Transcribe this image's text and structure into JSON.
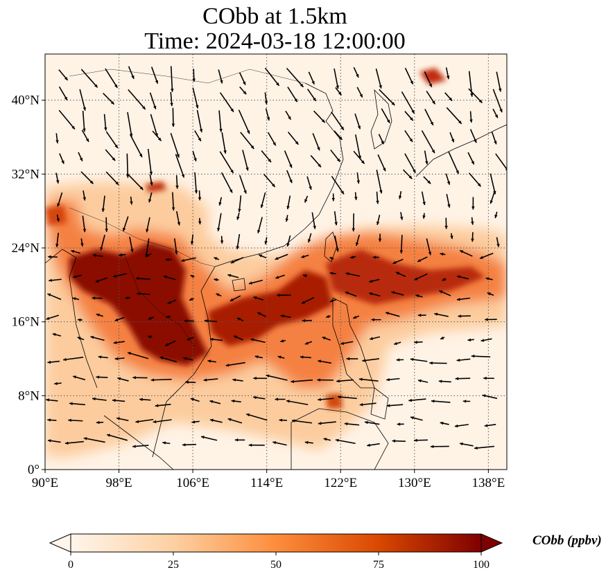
{
  "title": {
    "line1": "CObb at 1.5km",
    "line2": "Time: 2024-03-18 12:00:00"
  },
  "map": {
    "lon_range": [
      90,
      140
    ],
    "lat_range": [
      0,
      45
    ],
    "lon_ticks": [
      "90°E",
      "98°E",
      "106°E",
      "114°E",
      "122°E",
      "130°E",
      "138°E"
    ],
    "lat_ticks": [
      "0°",
      "8°N",
      "16°N",
      "24°N",
      "32°N",
      "40°N"
    ],
    "lon_tick_values": [
      90,
      98,
      106,
      114,
      122,
      130,
      138
    ],
    "lat_tick_values": [
      0,
      8,
      16,
      24,
      32,
      40
    ],
    "gridlines": true
  },
  "colorbar": {
    "label": "CObb (ppbv)",
    "ticks": [
      "0",
      "25",
      "50",
      "75",
      "100"
    ],
    "tick_values": [
      0,
      25,
      50,
      75,
      100
    ],
    "range": [
      0,
      100
    ],
    "colormap": [
      "#fff5eb",
      "#fdd0a2",
      "#fd8d3c",
      "#d94801",
      "#7f0000"
    ],
    "extend": "both"
  },
  "colors": {
    "land_outline": "#000000",
    "gridline": "#555555",
    "vector": "#000000"
  }
}
